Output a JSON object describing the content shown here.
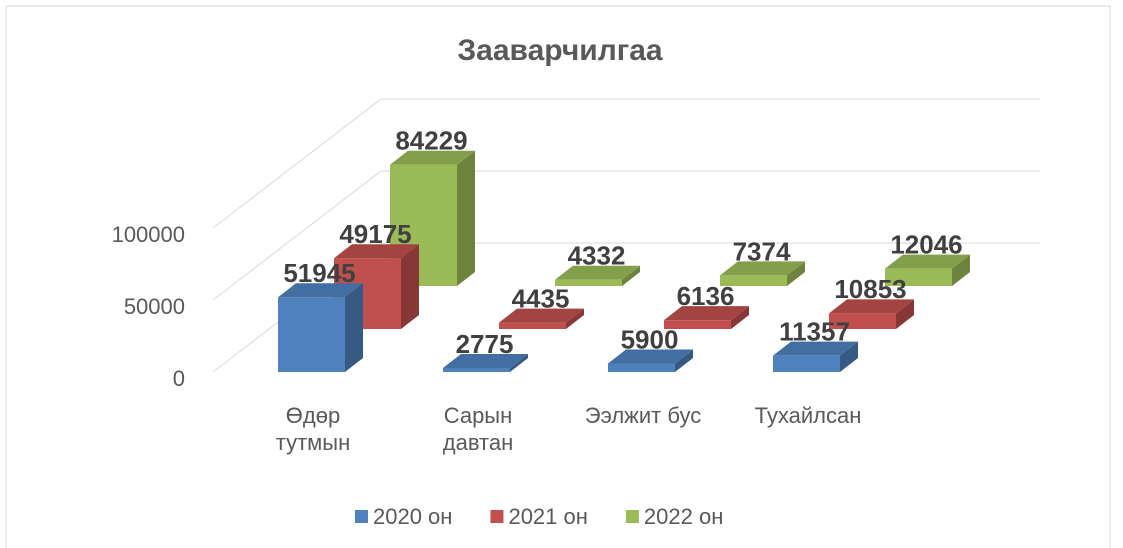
{
  "chart_data": {
    "type": "bar3d",
    "title": "Зааварчилгаа",
    "categories": [
      "Өдөр тутмын",
      "Сарын давтан",
      "Ээлжит бус",
      "Тухайлсан"
    ],
    "series": [
      {
        "name": "2020 он",
        "color": "#4f81bd",
        "values": [
          51945,
          2775,
          5900,
          11357
        ]
      },
      {
        "name": "2021 он",
        "color": "#c0504d",
        "values": [
          49175,
          4435,
          6136,
          10853
        ]
      },
      {
        "name": "2022 он",
        "color": "#9bbb59",
        "values": [
          84229,
          4332,
          7374,
          12046
        ]
      }
    ],
    "ylim": [
      0,
      100000
    ],
    "yticks": [
      0,
      50000,
      100000
    ],
    "grid": true,
    "legend": "bottom"
  }
}
